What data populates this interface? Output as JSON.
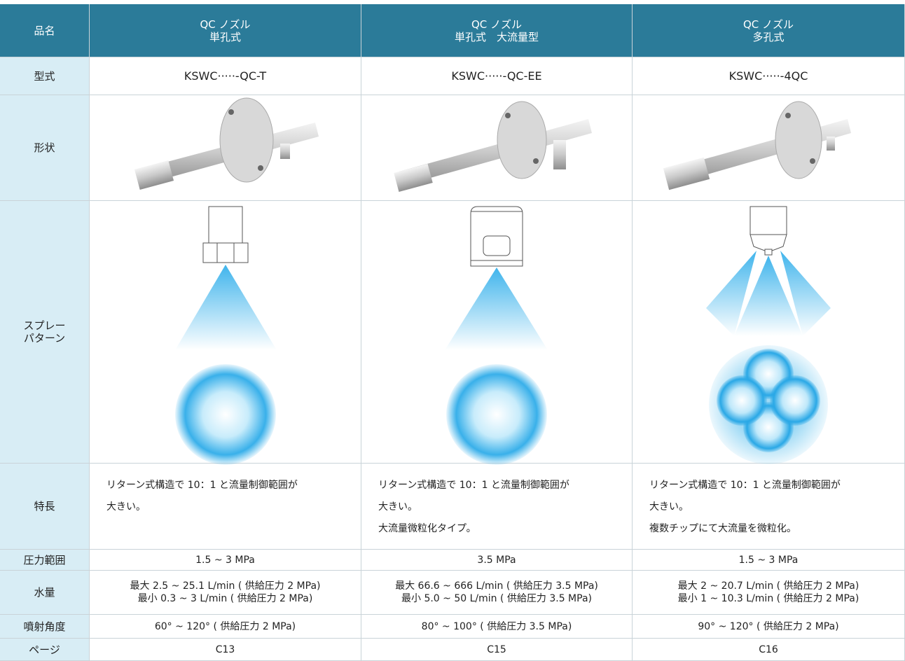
{
  "table": {
    "header": {
      "label": "品名",
      "columns": [
        [
          "QC ノズル",
          "単孔式"
        ],
        [
          "QC ノズル",
          "単孔式　大流量型"
        ],
        [
          "QC ノズル",
          "多孔式"
        ]
      ]
    },
    "rows": [
      {
        "label": [
          "型式"
        ],
        "cells": [
          [
            "KSWC·····-QC-T"
          ],
          [
            "KSWC·····-QC-EE"
          ],
          [
            "KSWC·····-4QC"
          ]
        ]
      },
      {
        "label": [
          "形状"
        ]
      },
      {
        "label": [
          "スプレー",
          "パターン"
        ]
      },
      {
        "label": [
          "特長"
        ],
        "cells": [
          [
            "リターン式構造で 10：1 と流量制御範囲が",
            "大きい。"
          ],
          [
            "リターン式構造で 10：1 と流量制御範囲が",
            "大きい。",
            "大流量微粒化タイプ。"
          ],
          [
            "リターン式構造で 10：1 と流量制御範囲が",
            "大きい。",
            "複数チップにて大流量を微粒化。"
          ]
        ]
      },
      {
        "label": [
          "圧力範囲"
        ],
        "cells": [
          [
            "1.5 ~ 3 MPa"
          ],
          [
            "3.5 MPa"
          ],
          [
            "1.5 ~ 3 MPa"
          ]
        ]
      },
      {
        "label": [
          "水量"
        ],
        "cells": [
          [
            "最大 2.5 ~ 25.1 L/min ( 供給圧力 2 MPa)",
            "最小 0.3 ~ 3 L/min ( 供給圧力 2 MPa)"
          ],
          [
            "最大 66.6 ~ 666 L/min ( 供給圧力 3.5 MPa)",
            "最小 5.0 ~ 50 L/min ( 供給圧力 3.5 MPa)"
          ],
          [
            "最大 2 ~ 20.7 L/min ( 供給圧力 2 MPa)",
            "最小 1 ~ 10.3 L/min ( 供給圧力 2 MPa)"
          ]
        ]
      },
      {
        "label": [
          "噴射角度"
        ],
        "cells": [
          [
            "60° ~ 120° ( 供給圧力 2 MPa)"
          ],
          [
            "80° ~ 100° ( 供給圧力 3.5 MPa)"
          ],
          [
            "90° ~ 120° ( 供給圧力 2 MPa)"
          ]
        ]
      },
      {
        "label": [
          "ページ"
        ],
        "cells": [
          [
            "C13"
          ],
          [
            "C15"
          ],
          [
            "C16"
          ]
        ]
      }
    ]
  }
}
